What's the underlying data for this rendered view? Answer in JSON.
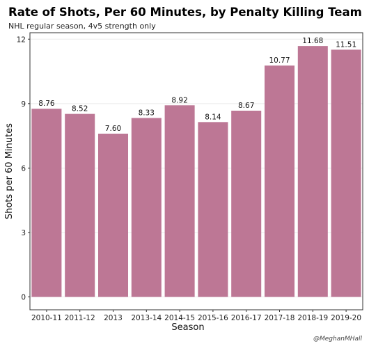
{
  "chart_data": {
    "type": "bar",
    "title": "Rate of Shots, Per 60 Minutes, by Penalty Killing Team",
    "subtitle": "NHL regular season, 4v5 strength only",
    "xlabel": "Season",
    "ylabel": "Shots per 60 Minutes",
    "caption": "@MeghanMHall",
    "categories": [
      "2010-11",
      "2011-12",
      "2013",
      "2013-14",
      "2014-15",
      "2015-16",
      "2016-17",
      "2017-18",
      "2018-19",
      "2019-20"
    ],
    "values": [
      8.76,
      8.52,
      7.6,
      8.33,
      8.92,
      8.14,
      8.67,
      10.77,
      11.68,
      11.51
    ],
    "data_labels": [
      "8.76",
      "8.52",
      "7.60",
      "8.33",
      "8.92",
      "8.14",
      "8.67",
      "10.77",
      "11.68",
      "11.51"
    ],
    "yticks": [
      0,
      3,
      6,
      9,
      12
    ],
    "ylim": [
      -0.6,
      12.3
    ],
    "bar_color": "#bd7795",
    "grid": true,
    "legend": "none"
  }
}
